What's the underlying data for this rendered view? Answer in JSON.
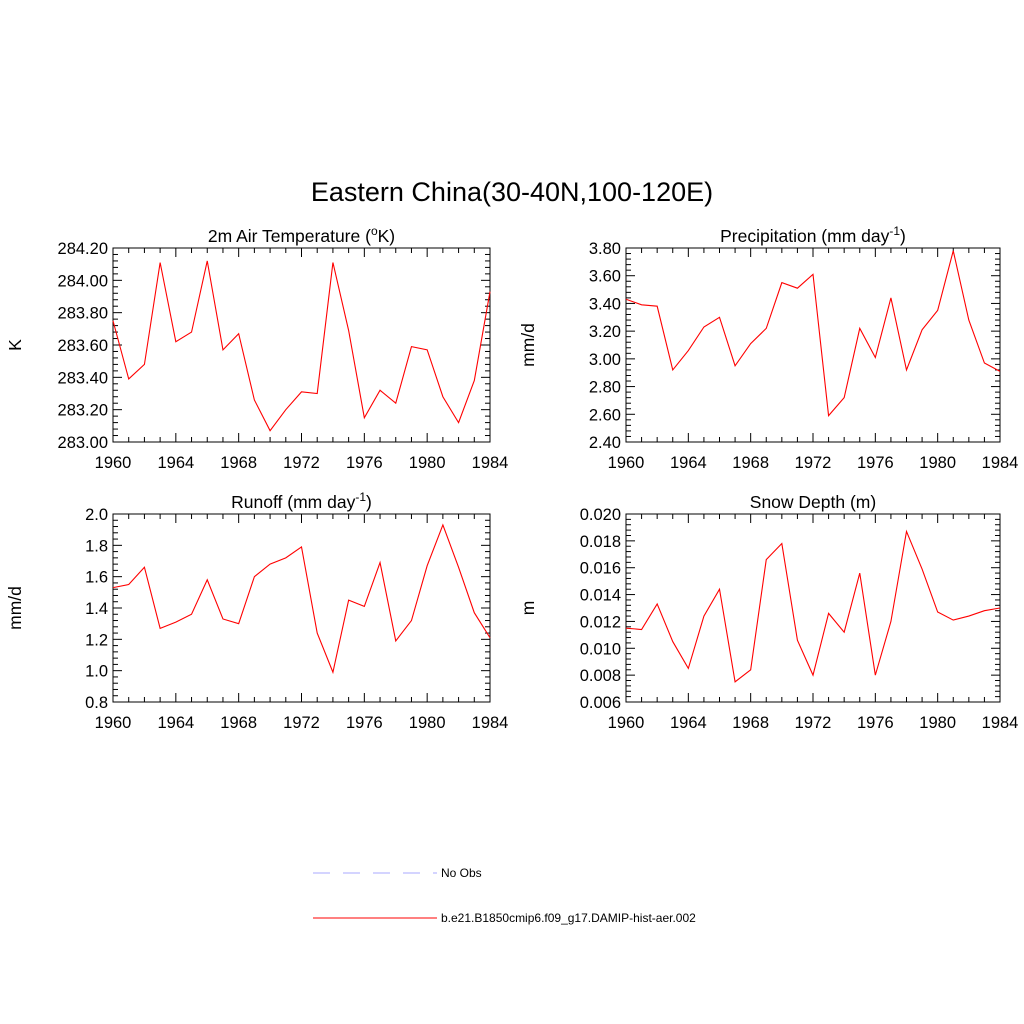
{
  "page_title": "Eastern China(30-40N,100-120E)",
  "legend": [
    {
      "label": "No Obs",
      "color": "#a9a9ff",
      "dashed": true
    },
    {
      "label": "b.e21.B1850cmip6.f09_g17.DAMIP-hist-aer.002",
      "color": "#ff0000",
      "dashed": false
    }
  ],
  "chart_data": [
    {
      "type": "line",
      "title": "2m Air Temperature (",
      "title_sup": "o",
      "title_after": "K)",
      "xlabel": "",
      "ylabel": "K",
      "xlim": [
        1960,
        1984
      ],
      "ylim": [
        283.0,
        284.2
      ],
      "xticks": [
        "1960",
        "1964",
        "1968",
        "1972",
        "1976",
        "1980",
        "1984"
      ],
      "yticks": [
        "283.00",
        "283.20",
        "283.40",
        "283.60",
        "283.80",
        "284.00",
        "284.20"
      ],
      "x": [
        1960,
        1961,
        1962,
        1963,
        1964,
        1965,
        1966,
        1967,
        1968,
        1969,
        1970,
        1971,
        1972,
        1973,
        1974,
        1975,
        1976,
        1977,
        1978,
        1979,
        1980,
        1981,
        1982,
        1983,
        1984
      ],
      "series": [
        {
          "name": "b.e21.B1850cmip6.f09_g17.DAMIP-hist-aer.002",
          "color": "#ff0000",
          "values": [
            283.75,
            283.39,
            283.48,
            284.11,
            283.62,
            283.68,
            284.12,
            283.57,
            283.67,
            283.26,
            283.07,
            283.2,
            283.31,
            283.3,
            284.11,
            283.69,
            283.15,
            283.32,
            283.24,
            283.59,
            283.57,
            283.28,
            283.12,
            283.38,
            283.93
          ]
        }
      ]
    },
    {
      "type": "line",
      "title": "Precipitation (mm day",
      "title_sup": "-1",
      "title_after": ")",
      "xlabel": "",
      "ylabel": "mm/d",
      "xlim": [
        1960,
        1984
      ],
      "ylim": [
        2.4,
        3.8
      ],
      "xticks": [
        "1960",
        "1964",
        "1968",
        "1972",
        "1976",
        "1980",
        "1984"
      ],
      "yticks": [
        "2.40",
        "2.60",
        "2.80",
        "3.00",
        "3.20",
        "3.40",
        "3.60",
        "3.80"
      ],
      "x": [
        1960,
        1961,
        1962,
        1963,
        1964,
        1965,
        1966,
        1967,
        1968,
        1969,
        1970,
        1971,
        1972,
        1973,
        1974,
        1975,
        1976,
        1977,
        1978,
        1979,
        1980,
        1981,
        1982,
        1983,
        1984
      ],
      "series": [
        {
          "name": "b.e21.B1850cmip6.f09_g17.DAMIP-hist-aer.002",
          "color": "#ff0000",
          "values": [
            3.43,
            3.39,
            3.38,
            2.92,
            3.06,
            3.23,
            3.3,
            2.95,
            3.11,
            3.22,
            3.55,
            3.51,
            3.61,
            2.59,
            2.72,
            3.22,
            3.01,
            3.44,
            2.92,
            3.21,
            3.35,
            3.78,
            3.28,
            2.97,
            2.91
          ]
        }
      ]
    },
    {
      "type": "line",
      "title": "Runoff (mm day",
      "title_sup": "-1",
      "title_after": ")",
      "xlabel": "",
      "ylabel": "mm/d",
      "xlim": [
        1960,
        1984
      ],
      "ylim": [
        0.8,
        2.0
      ],
      "xticks": [
        "1960",
        "1964",
        "1968",
        "1972",
        "1976",
        "1980",
        "1984"
      ],
      "yticks": [
        "0.8",
        "1.0",
        "1.2",
        "1.4",
        "1.6",
        "1.8",
        "2.0"
      ],
      "x": [
        1960,
        1961,
        1962,
        1963,
        1964,
        1965,
        1966,
        1967,
        1968,
        1969,
        1970,
        1971,
        1972,
        1973,
        1974,
        1975,
        1976,
        1977,
        1978,
        1979,
        1980,
        1981,
        1982,
        1983,
        1984
      ],
      "series": [
        {
          "name": "b.e21.B1850cmip6.f09_g17.DAMIP-hist-aer.002",
          "color": "#ff0000",
          "values": [
            1.53,
            1.55,
            1.66,
            1.27,
            1.31,
            1.36,
            1.58,
            1.33,
            1.3,
            1.6,
            1.68,
            1.72,
            1.79,
            1.24,
            0.99,
            1.45,
            1.41,
            1.69,
            1.19,
            1.32,
            1.67,
            1.93,
            1.66,
            1.37,
            1.21
          ]
        }
      ]
    },
    {
      "type": "line",
      "title": "Snow Depth (m)",
      "title_sup": "",
      "title_after": "",
      "xlabel": "",
      "ylabel": "m",
      "xlim": [
        1960,
        1984
      ],
      "ylim": [
        0.006,
        0.02
      ],
      "xticks": [
        "1960",
        "1964",
        "1968",
        "1972",
        "1976",
        "1980",
        "1984"
      ],
      "yticks": [
        "0.006",
        "0.008",
        "0.010",
        "0.012",
        "0.014",
        "0.016",
        "0.018",
        "0.020"
      ],
      "x": [
        1960,
        1961,
        1962,
        1963,
        1964,
        1965,
        1966,
        1967,
        1968,
        1969,
        1970,
        1971,
        1972,
        1973,
        1974,
        1975,
        1976,
        1977,
        1978,
        1979,
        1980,
        1981,
        1982,
        1983,
        1984
      ],
      "series": [
        {
          "name": "b.e21.B1850cmip6.f09_g17.DAMIP-hist-aer.002",
          "color": "#ff0000",
          "values": [
            0.0115,
            0.0114,
            0.0133,
            0.0105,
            0.0085,
            0.0124,
            0.0144,
            0.0075,
            0.0084,
            0.0166,
            0.0178,
            0.0106,
            0.008,
            0.0126,
            0.0112,
            0.0156,
            0.008,
            0.012,
            0.0187,
            0.0159,
            0.0127,
            0.0121,
            0.0124,
            0.0128,
            0.013
          ]
        }
      ]
    }
  ]
}
